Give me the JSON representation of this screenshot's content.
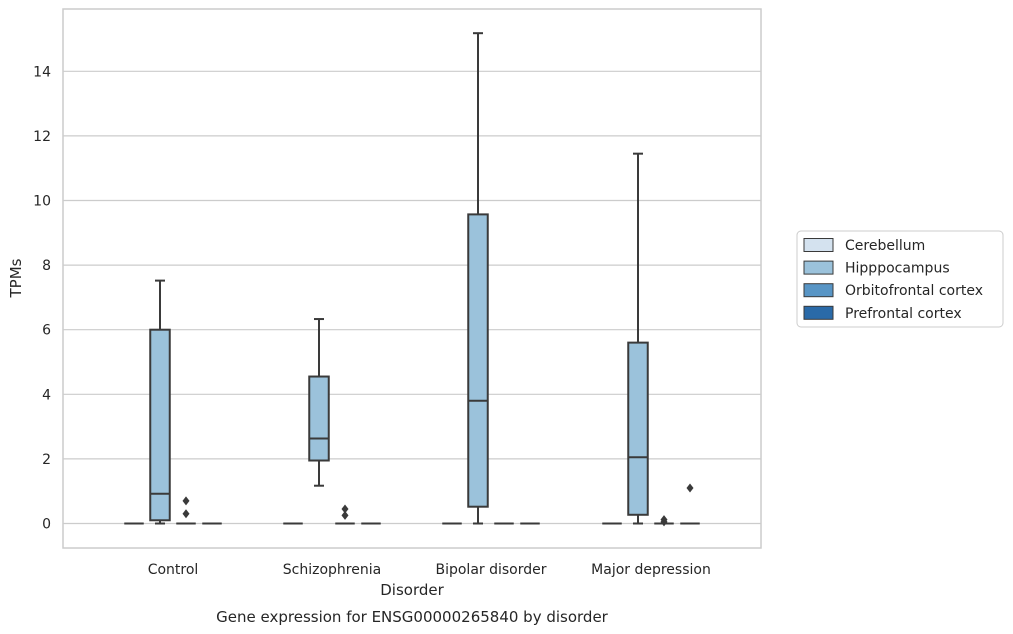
{
  "chart_data": {
    "type": "box",
    "title": "",
    "caption": "Gene expression for ENSG00000265840 by disorder",
    "xlabel": "Disorder",
    "ylabel": "TPMs",
    "ylim": [
      -0.75,
      15.9
    ],
    "yticks": [
      "0",
      "2",
      "4",
      "6",
      "8",
      "10",
      "12",
      "14"
    ],
    "grid": "horizontal",
    "legend_position": "right",
    "categories": [
      "Control",
      "Schizophrenia",
      "Bipolar disorder",
      "Major depression"
    ],
    "series": [
      {
        "name": "Cerebellum",
        "color": "#d4e2ef",
        "boxes": [
          {
            "min": 0,
            "q1": 0,
            "median": 0,
            "q3": 0,
            "max": 0,
            "outliers": []
          },
          {
            "min": 0,
            "q1": 0,
            "median": 0,
            "q3": 0,
            "max": 0,
            "outliers": []
          },
          {
            "min": 0,
            "q1": 0,
            "median": 0,
            "q3": 0,
            "max": 0,
            "outliers": []
          },
          {
            "min": 0,
            "q1": 0,
            "median": 0,
            "q3": 0,
            "max": 0,
            "outliers": []
          }
        ]
      },
      {
        "name": "Hipppocampus",
        "color": "#9bc2db",
        "boxes": [
          {
            "min": 0,
            "q1": 0.1,
            "median": 0.92,
            "q3": 6.0,
            "max": 7.52,
            "outliers": []
          },
          {
            "min": 1.17,
            "q1": 1.95,
            "median": 2.63,
            "q3": 4.55,
            "max": 6.33,
            "outliers": []
          },
          {
            "min": 0,
            "q1": 0.52,
            "median": 3.8,
            "q3": 9.57,
            "max": 15.18,
            "outliers": []
          },
          {
            "min": 0,
            "q1": 0.27,
            "median": 2.05,
            "q3": 5.6,
            "max": 11.45,
            "outliers": []
          }
        ]
      },
      {
        "name": "Orbitofrontal cortex",
        "color": "#5895c5",
        "boxes": [
          {
            "min": 0,
            "q1": 0,
            "median": 0,
            "q3": 0,
            "max": 0,
            "outliers": [
              0.7,
              0.3
            ]
          },
          {
            "min": 0,
            "q1": 0,
            "median": 0,
            "q3": 0,
            "max": 0,
            "outliers": [
              0.45,
              0.25
            ]
          },
          {
            "min": 0,
            "q1": 0,
            "median": 0,
            "q3": 0,
            "max": 0,
            "outliers": []
          },
          {
            "min": 0,
            "q1": 0,
            "median": 0,
            "q3": 0,
            "max": 0,
            "outliers": [
              0.12,
              0.05
            ]
          }
        ]
      },
      {
        "name": "Prefrontal cortex",
        "color": "#2a6aa8",
        "boxes": [
          {
            "min": 0,
            "q1": 0,
            "median": 0,
            "q3": 0,
            "max": 0,
            "outliers": []
          },
          {
            "min": 0,
            "q1": 0,
            "median": 0,
            "q3": 0,
            "max": 0,
            "outliers": []
          },
          {
            "min": 0,
            "q1": 0,
            "median": 0,
            "q3": 0,
            "max": 0,
            "outliers": []
          },
          {
            "min": 0,
            "q1": 0,
            "median": 0,
            "q3": 0,
            "max": 0,
            "outliers": [
              1.1
            ]
          }
        ]
      }
    ]
  }
}
